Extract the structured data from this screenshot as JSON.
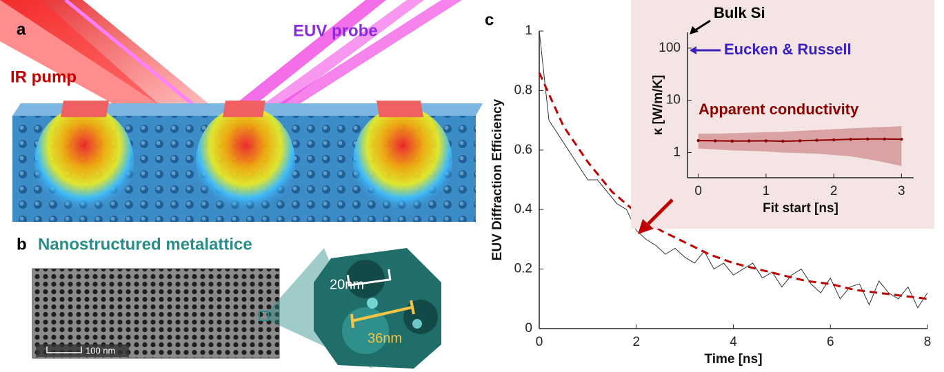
{
  "panel_a": {
    "label": "a",
    "pump": "IR pump",
    "probe": "EUV probe"
  },
  "panel_b": {
    "label": "b",
    "title": "Nanostructured metalattice",
    "scale_bar": "100 nm",
    "pore_diameter": "20nm",
    "cell_size": "36nm"
  },
  "panel_c_label": "c",
  "chart_data": [
    {
      "type": "line",
      "xlabel": "Time [ns]",
      "ylabel": "EUV Diffraction Efficiency",
      "xlim": [
        0,
        8
      ],
      "ylim": [
        0,
        1
      ],
      "xticks": [
        0,
        2,
        4,
        6,
        8
      ],
      "yticks": [
        0,
        0.2,
        0.4,
        0.6,
        0.8,
        1
      ],
      "series": [
        {
          "style": "solid",
          "color": "#333333",
          "x": [
            0,
            0.2,
            0.4,
            0.6,
            0.8,
            1.0,
            1.2,
            1.4,
            1.6,
            1.8,
            2.0,
            2.2,
            2.4,
            2.6,
            2.8,
            3.0,
            3.2,
            3.4,
            3.6,
            3.8,
            4.0,
            4.2,
            4.4,
            4.6,
            4.8,
            5.0,
            5.2,
            5.4,
            5.6,
            5.8,
            6.0,
            6.2,
            6.4,
            6.6,
            6.8,
            7.0,
            7.2,
            7.4,
            7.6,
            7.8,
            8.0
          ],
          "values": [
            1.0,
            0.7,
            0.65,
            0.6,
            0.55,
            0.5,
            0.5,
            0.46,
            0.42,
            0.4,
            0.33,
            0.3,
            0.28,
            0.25,
            0.27,
            0.24,
            0.22,
            0.26,
            0.2,
            0.22,
            0.18,
            0.2,
            0.22,
            0.17,
            0.19,
            0.14,
            0.18,
            0.2,
            0.15,
            0.12,
            0.17,
            0.1,
            0.14,
            0.15,
            0.08,
            0.16,
            0.12,
            0.1,
            0.14,
            0.07,
            0.12
          ]
        },
        {
          "style": "dashed",
          "color": "#c00000",
          "x": [
            0,
            0.5,
            1.0,
            1.5,
            2.0,
            2.5,
            3.0,
            3.5,
            4.0,
            4.5,
            5.0,
            5.5,
            6.0,
            6.5,
            7.0,
            7.5,
            8.0
          ],
          "values": [
            0.86,
            0.68,
            0.56,
            0.46,
            0.39,
            0.33,
            0.29,
            0.25,
            0.22,
            0.2,
            0.18,
            0.16,
            0.15,
            0.13,
            0.12,
            0.11,
            0.1
          ]
        }
      ]
    },
    {
      "type": "line",
      "xlabel": "Fit start [ns]",
      "ylabel": "κ [W/m/K]",
      "log_y": true,
      "xlim": [
        -0.16,
        3.18
      ],
      "ylim": [
        0.33,
        200
      ],
      "xticks": [
        0,
        1,
        2,
        3
      ],
      "yticks": [
        1,
        10,
        100
      ],
      "annotations": [
        {
          "text": "Bulk Si",
          "color": "#000000"
        },
        {
          "text": "Eucken & Russell",
          "color": "#3a1fc0"
        }
      ],
      "series": [
        {
          "name": "Apparent conductivity",
          "style": "dotted-band",
          "color": "#8b0000",
          "band_color": "#c87878",
          "x": [
            0,
            0.25,
            0.5,
            0.75,
            1.0,
            1.25,
            1.5,
            1.75,
            2.0,
            2.25,
            2.5,
            2.75,
            3.0
          ],
          "values": [
            1.7,
            1.68,
            1.66,
            1.67,
            1.68,
            1.65,
            1.68,
            1.72,
            1.75,
            1.8,
            1.82,
            1.82,
            1.8
          ],
          "lower": [
            1.2,
            1.15,
            1.1,
            1.08,
            1.05,
            1.0,
            0.98,
            0.95,
            0.9,
            0.85,
            0.75,
            0.65,
            0.55
          ],
          "upper": [
            2.3,
            2.3,
            2.35,
            2.4,
            2.45,
            2.5,
            2.6,
            2.7,
            2.8,
            2.9,
            3.0,
            3.1,
            3.2
          ]
        }
      ]
    }
  ]
}
